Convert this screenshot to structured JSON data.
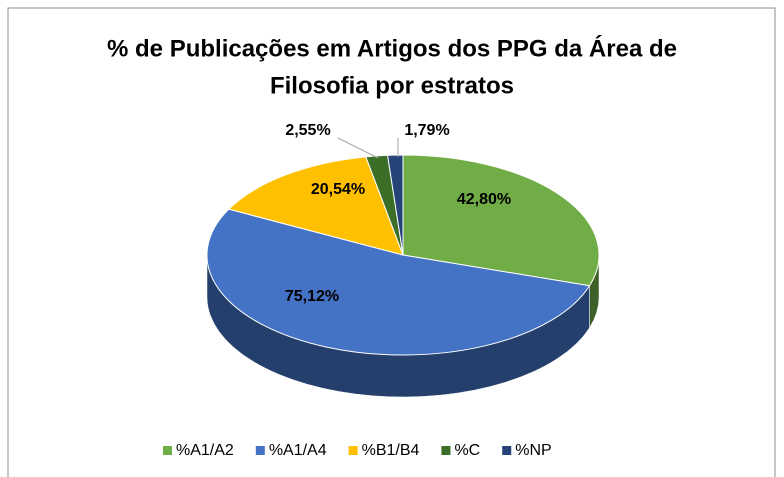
{
  "chart_data": {
    "type": "pie3d",
    "title": [
      "% de Publicações em Artigos dos PPG da Área de",
      "Filosofia por estratos"
    ],
    "categories": [
      "%A1/A2",
      "%A1/A4",
      "%B1/B4",
      "%C",
      "%NP"
    ],
    "values": [
      42.8,
      75.12,
      20.54,
      2.55,
      1.79
    ],
    "value_labels": [
      "42,80%",
      "75,12%",
      "20,54%",
      "2,55%",
      "1,79%"
    ],
    "colors": [
      "#70ad47",
      "#4472c4",
      "#ffc000",
      "#3b6e26",
      "#264478"
    ],
    "legend": "bottom"
  }
}
